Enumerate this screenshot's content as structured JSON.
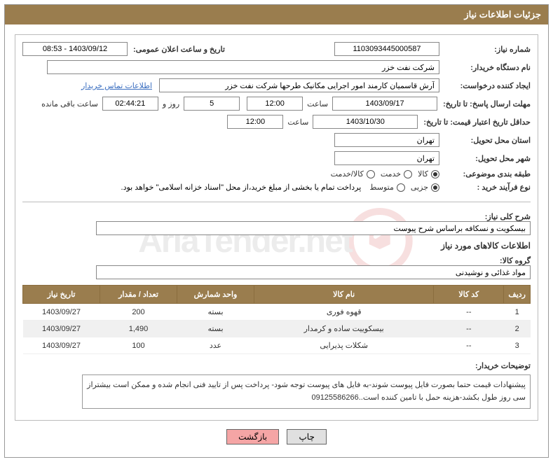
{
  "panel": {
    "title": "جزئیات اطلاعات نیاز"
  },
  "need_number": {
    "label": "شماره نیاز:",
    "value": "1103093445000587"
  },
  "announcement": {
    "label": "تاریخ و ساعت اعلان عمومی:",
    "value": "1403/09/12 - 08:53"
  },
  "buyer_org": {
    "label": "نام دستگاه خریدار:",
    "value": "شرکت نفت خزر"
  },
  "requester": {
    "label": "ایجاد کننده درخواست:",
    "value": "آرش قاسمیان کارمند امور اجرایی مکانیک طرحها شرکت نفت خزر"
  },
  "contact_link": "اطلاعات تماس خریدار",
  "deadline": {
    "label": "مهلت ارسال پاسخ: تا تاریخ:",
    "date": "1403/09/17",
    "time_label": "ساعت",
    "time": "12:00",
    "days": "5",
    "days_label": "روز و",
    "countdown": "02:44:21",
    "remain_label": "ساعت باقی مانده"
  },
  "validity": {
    "label": "حداقل تاریخ اعتبار قیمت: تا تاریخ:",
    "date": "1403/10/30",
    "time_label": "ساعت",
    "time": "12:00"
  },
  "province": {
    "label": "استان محل تحویل:",
    "value": "تهران"
  },
  "city": {
    "label": "شهر محل تحویل:",
    "value": "تهران"
  },
  "category": {
    "label": "طبقه بندی موضوعی:",
    "options": {
      "goods": "کالا",
      "service": "خدمت",
      "both": "کالا/خدمت"
    },
    "selected": "goods"
  },
  "purchase_type": {
    "label": "نوع فرآیند خرید :",
    "options": {
      "minor": "جزیی",
      "medium": "متوسط"
    },
    "selected": "minor",
    "note": "پرداخت تمام یا بخشی از مبلغ خرید،از محل \"اسناد خزانه اسلامی\" خواهد بود."
  },
  "need_desc": {
    "label": "شرح کلی نیاز:",
    "value": "بیسکویت و نسکافه براساس شرح پیوست"
  },
  "goods_section_title": "اطلاعات کالاهای مورد نیاز",
  "goods_group": {
    "label": "گروه کالا:",
    "value": "مواد غذائی و نوشیدنی"
  },
  "table": {
    "headers": {
      "row": "ردیف",
      "code": "کد کالا",
      "name": "نام کالا",
      "unit": "واحد شمارش",
      "qty": "تعداد / مقدار",
      "date": "تاریخ نیاز"
    },
    "rows": [
      {
        "idx": "1",
        "code": "--",
        "name": "قهوه فوری",
        "unit": "بسته",
        "qty": "200",
        "date": "1403/09/27"
      },
      {
        "idx": "2",
        "code": "--",
        "name": "بیسکوییت ساده و کرمدار",
        "unit": "بسته",
        "qty": "1,490",
        "date": "1403/09/27"
      },
      {
        "idx": "3",
        "code": "--",
        "name": "شکلات پذیرایی",
        "unit": "عدد",
        "qty": "100",
        "date": "1403/09/27"
      }
    ]
  },
  "buyer_notes": {
    "label": "توضیحات خریدار:",
    "value": "پیشنهادات قیمت حتما بصورت فایل پیوست شوند-به فایل های پیوست توجه شود- پرداخت پس از تایید فنی انجام شده و ممکن است بیشتراز سی روز طول بکشد-هزینه حمل با تامین کننده است..09125586266"
  },
  "buttons": {
    "print": "چاپ",
    "back": "بازگشت"
  },
  "watermark_text": "AriaTender.net"
}
